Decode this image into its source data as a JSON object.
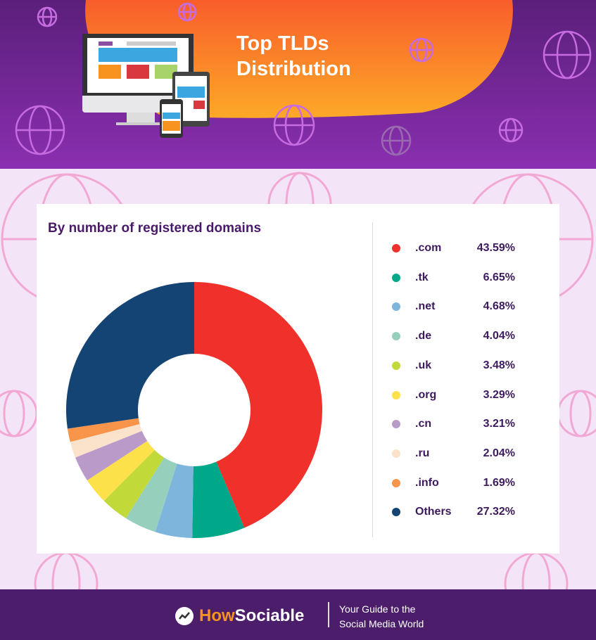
{
  "header": {
    "title_line1": "Top TLDs",
    "title_line2": "Distribution"
  },
  "colors": {
    "header_purple": "#7a2aa0",
    "blob_orange": "#f7931e",
    "background": "#f4e4f8",
    "footer": "#4b1d6b",
    "title_text": "#4a1a6a"
  },
  "chart_data": {
    "type": "pie",
    "donut": true,
    "title": "By number of registered domains",
    "legend_position": "right",
    "unit": "%",
    "slices": [
      {
        "label": ".com",
        "value": 43.59,
        "display": "43.59%",
        "color": "#f0302a"
      },
      {
        "label": ".tk",
        "value": 6.65,
        "display": "6.65%",
        "color": "#00a88a"
      },
      {
        "label": ".net",
        "value": 4.68,
        "display": "4.68%",
        "color": "#7db5dc"
      },
      {
        "label": ".de",
        "value": 4.04,
        "display": "4.04%",
        "color": "#96d0bc"
      },
      {
        "label": ".uk",
        "value": 3.48,
        "display": "3.48%",
        "color": "#c2d93a"
      },
      {
        "label": ".org",
        "value": 3.29,
        "display": "3.29%",
        "color": "#fce14b"
      },
      {
        "label": ".cn",
        "value": 3.21,
        "display": "3.21%",
        "color": "#b99ac9"
      },
      {
        "label": ".ru",
        "value": 2.04,
        "display": "2.04%",
        "color": "#fbe3cb"
      },
      {
        "label": ".info",
        "value": 1.69,
        "display": "1.69%",
        "color": "#f9954b"
      },
      {
        "label": "Others",
        "value": 27.32,
        "display": "27.32%",
        "color": "#134474"
      }
    ]
  },
  "footer": {
    "brand_how": "How",
    "brand_sociable": "Sociable",
    "tagline_line1": "Your Guide to the",
    "tagline_line2": "Social Media World"
  }
}
